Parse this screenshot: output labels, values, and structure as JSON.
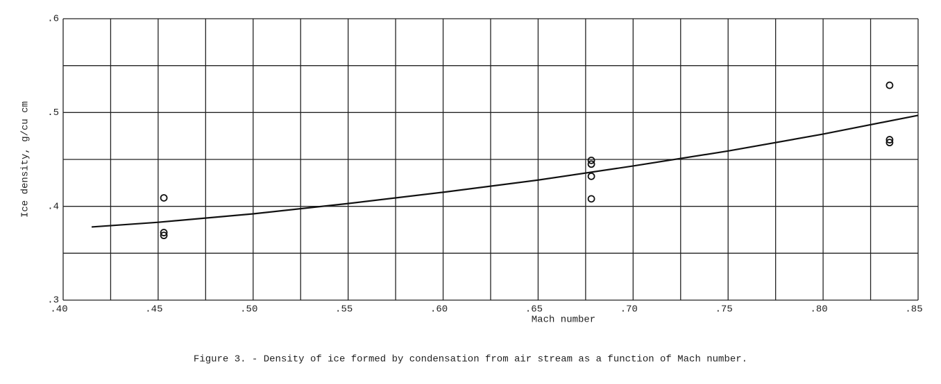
{
  "chart_data": {
    "type": "scatter",
    "caption": "Figure 3. - Density of ice formed by condensation from air stream as a function of Mach number.",
    "x_label": "Mach number",
    "y_label": "Ice density, g/cu cm",
    "xlim": [
      0.4,
      0.85
    ],
    "ylim": [
      0.3,
      0.6
    ],
    "xticks": [
      {
        "value": 0.4,
        "label": ".40"
      },
      {
        "value": 0.425,
        "label": null
      },
      {
        "value": 0.45,
        "label": ".45"
      },
      {
        "value": 0.475,
        "label": null
      },
      {
        "value": 0.5,
        "label": ".50"
      },
      {
        "value": 0.525,
        "label": null
      },
      {
        "value": 0.55,
        "label": ".55"
      },
      {
        "value": 0.575,
        "label": null
      },
      {
        "value": 0.6,
        "label": ".60"
      },
      {
        "value": 0.625,
        "label": null
      },
      {
        "value": 0.65,
        "label": ".65"
      },
      {
        "value": 0.675,
        "label": null
      },
      {
        "value": 0.7,
        "label": ".70"
      },
      {
        "value": 0.725,
        "label": null
      },
      {
        "value": 0.75,
        "label": ".75"
      },
      {
        "value": 0.775,
        "label": null
      },
      {
        "value": 0.8,
        "label": ".80"
      },
      {
        "value": 0.825,
        "label": null
      },
      {
        "value": 0.85,
        "label": ".85"
      }
    ],
    "yticks": [
      {
        "value": 0.3,
        "label": ".3"
      },
      {
        "value": 0.35,
        "label": null
      },
      {
        "value": 0.4,
        "label": ".4"
      },
      {
        "value": 0.45,
        "label": null
      },
      {
        "value": 0.5,
        "label": ".5"
      },
      {
        "value": 0.55,
        "label": null
      },
      {
        "value": 0.6,
        "label": ".6"
      }
    ],
    "grid": true,
    "color": "#111111",
    "points": {
      "x": [
        0.453,
        0.453,
        0.453,
        0.678,
        0.678,
        0.678,
        0.678,
        0.835,
        0.835,
        0.835
      ],
      "y": [
        0.409,
        0.372,
        0.369,
        0.449,
        0.445,
        0.432,
        0.408,
        0.529,
        0.471,
        0.468
      ]
    },
    "curve": {
      "x": [
        0.415,
        0.45,
        0.5,
        0.55,
        0.6,
        0.65,
        0.7,
        0.75,
        0.8,
        0.85
      ],
      "y": [
        0.378,
        0.383,
        0.392,
        0.403,
        0.415,
        0.428,
        0.443,
        0.459,
        0.477,
        0.497
      ]
    }
  }
}
